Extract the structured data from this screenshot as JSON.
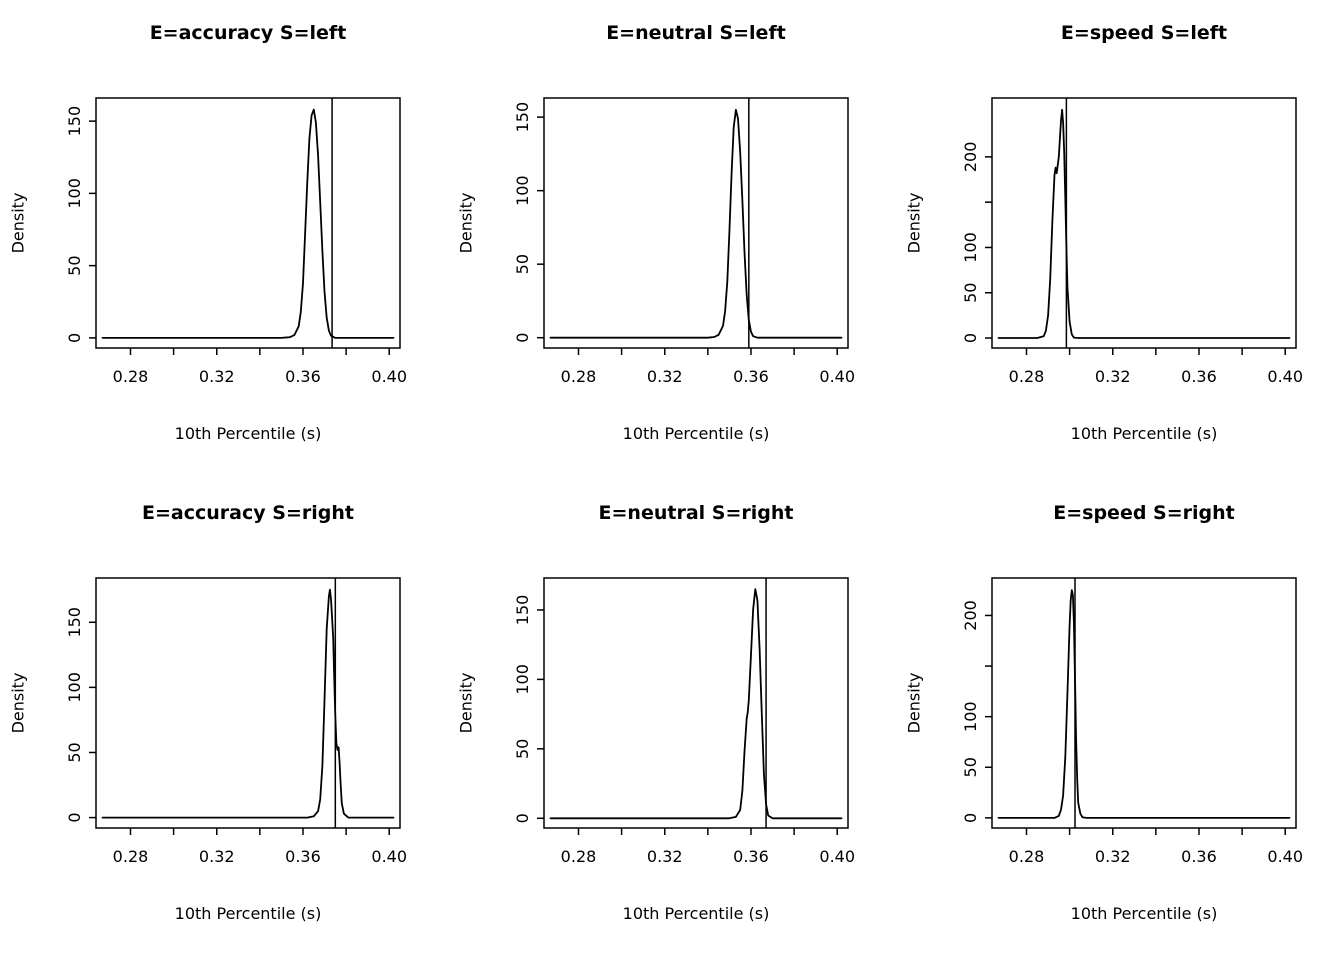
{
  "figure": {
    "background": "#ffffff",
    "foreground": "#000000",
    "layout": "2 rows x 3 columns of density plots",
    "xlabel": "10th Percentile (s)",
    "ylabel": "Density"
  },
  "x_axis": {
    "tick_values": [
      0.28,
      0.3,
      0.32,
      0.34,
      0.36,
      0.38,
      0.4
    ],
    "tick_labels": [
      "0.28",
      "",
      "0.32",
      "",
      "0.36",
      "",
      "0.40"
    ]
  },
  "chart_data": [
    {
      "type": "line",
      "title": "E=accuracy S=left",
      "xlabel": "10th Percentile (s)",
      "ylabel": "Density",
      "xlim": [
        0.264,
        0.405
      ],
      "ylim": [
        -7,
        166
      ],
      "legend": "none",
      "grid": false,
      "y_axis": {
        "tick_values": [
          0,
          50,
          100,
          150
        ],
        "tick_labels": [
          "0",
          "50",
          "100",
          "150"
        ]
      },
      "vline": 0.3735,
      "curve": [
        [
          0.267,
          0
        ],
        [
          0.35,
          0
        ],
        [
          0.354,
          0.5
        ],
        [
          0.356,
          2
        ],
        [
          0.358,
          8
        ],
        [
          0.359,
          18
        ],
        [
          0.36,
          38
        ],
        [
          0.361,
          72
        ],
        [
          0.362,
          108
        ],
        [
          0.363,
          138
        ],
        [
          0.364,
          154
        ],
        [
          0.365,
          158
        ],
        [
          0.366,
          149
        ],
        [
          0.367,
          126
        ],
        [
          0.368,
          94
        ],
        [
          0.369,
          60
        ],
        [
          0.37,
          32
        ],
        [
          0.371,
          14
        ],
        [
          0.372,
          5
        ],
        [
          0.373,
          1.5
        ],
        [
          0.375,
          0
        ],
        [
          0.402,
          0
        ]
      ]
    },
    {
      "type": "line",
      "title": "E=neutral S=left",
      "xlabel": "10th Percentile (s)",
      "ylabel": "Density",
      "xlim": [
        0.264,
        0.405
      ],
      "ylim": [
        -7,
        163
      ],
      "legend": "none",
      "grid": false,
      "y_axis": {
        "tick_values": [
          0,
          50,
          100,
          150
        ],
        "tick_labels": [
          "0",
          "50",
          "100",
          "150"
        ]
      },
      "vline": 0.359,
      "curve": [
        [
          0.267,
          0
        ],
        [
          0.34,
          0
        ],
        [
          0.343,
          0.5
        ],
        [
          0.345,
          2
        ],
        [
          0.347,
          8
        ],
        [
          0.348,
          18
        ],
        [
          0.349,
          38
        ],
        [
          0.35,
          72
        ],
        [
          0.351,
          112
        ],
        [
          0.352,
          143
        ],
        [
          0.353,
          155
        ],
        [
          0.354,
          149
        ],
        [
          0.355,
          126
        ],
        [
          0.356,
          93
        ],
        [
          0.357,
          58
        ],
        [
          0.358,
          29
        ],
        [
          0.359,
          12
        ],
        [
          0.36,
          4
        ],
        [
          0.361,
          1
        ],
        [
          0.363,
          0
        ],
        [
          0.402,
          0
        ]
      ]
    },
    {
      "type": "line",
      "title": "E=speed S=left",
      "xlabel": "10th Percentile (s)",
      "ylabel": "Density",
      "xlim": [
        0.264,
        0.405
      ],
      "ylim": [
        -11,
        265
      ],
      "legend": "none",
      "grid": false,
      "y_axis": {
        "tick_values": [
          0,
          50,
          100,
          150,
          200
        ],
        "tick_labels": [
          "0",
          "50",
          "100",
          "",
          "200"
        ]
      },
      "vline": 0.2985,
      "curve": [
        [
          0.267,
          0
        ],
        [
          0.285,
          0
        ],
        [
          0.288,
          2
        ],
        [
          0.289,
          8
        ],
        [
          0.29,
          25
        ],
        [
          0.291,
          65
        ],
        [
          0.292,
          130
        ],
        [
          0.293,
          180
        ],
        [
          0.2935,
          188
        ],
        [
          0.294,
          182
        ],
        [
          0.295,
          200
        ],
        [
          0.296,
          240
        ],
        [
          0.2965,
          252
        ],
        [
          0.297,
          238
        ],
        [
          0.2975,
          205
        ],
        [
          0.298,
          155
        ],
        [
          0.2985,
          100
        ],
        [
          0.299,
          55
        ],
        [
          0.3,
          18
        ],
        [
          0.301,
          4
        ],
        [
          0.302,
          0.5
        ],
        [
          0.304,
          0
        ],
        [
          0.402,
          0
        ]
      ]
    },
    {
      "type": "line",
      "title": "E=accuracy S=right",
      "xlabel": "10th Percentile (s)",
      "ylabel": "Density",
      "xlim": [
        0.264,
        0.405
      ],
      "ylim": [
        -8,
        184
      ],
      "legend": "none",
      "grid": false,
      "y_axis": {
        "tick_values": [
          0,
          50,
          100,
          150
        ],
        "tick_labels": [
          "0",
          "50",
          "100",
          "150"
        ]
      },
      "vline": 0.375,
      "curve": [
        [
          0.267,
          0
        ],
        [
          0.362,
          0
        ],
        [
          0.365,
          1
        ],
        [
          0.367,
          5
        ],
        [
          0.368,
          14
        ],
        [
          0.369,
          40
        ],
        [
          0.37,
          90
        ],
        [
          0.371,
          145
        ],
        [
          0.372,
          170
        ],
        [
          0.3725,
          175
        ],
        [
          0.373,
          168
        ],
        [
          0.374,
          138
        ],
        [
          0.3745,
          108
        ],
        [
          0.375,
          78
        ],
        [
          0.3755,
          57
        ],
        [
          0.376,
          52
        ],
        [
          0.3765,
          54
        ],
        [
          0.377,
          42
        ],
        [
          0.3775,
          25
        ],
        [
          0.378,
          11
        ],
        [
          0.379,
          3
        ],
        [
          0.381,
          0
        ],
        [
          0.402,
          0
        ]
      ]
    },
    {
      "type": "line",
      "title": "E=neutral S=right",
      "xlabel": "10th Percentile (s)",
      "ylabel": "Density",
      "xlim": [
        0.264,
        0.405
      ],
      "ylim": [
        -7,
        173
      ],
      "legend": "none",
      "grid": false,
      "y_axis": {
        "tick_values": [
          0,
          50,
          100,
          150
        ],
        "tick_labels": [
          "0",
          "50",
          "100",
          "150"
        ]
      },
      "vline": 0.367,
      "curve": [
        [
          0.267,
          0
        ],
        [
          0.35,
          0
        ],
        [
          0.353,
          1
        ],
        [
          0.355,
          6
        ],
        [
          0.356,
          20
        ],
        [
          0.357,
          48
        ],
        [
          0.358,
          72
        ],
        [
          0.3585,
          76
        ],
        [
          0.359,
          85
        ],
        [
          0.36,
          118
        ],
        [
          0.361,
          150
        ],
        [
          0.362,
          165
        ],
        [
          0.363,
          157
        ],
        [
          0.364,
          122
        ],
        [
          0.365,
          75
        ],
        [
          0.366,
          32
        ],
        [
          0.367,
          10
        ],
        [
          0.368,
          2
        ],
        [
          0.37,
          0
        ],
        [
          0.402,
          0
        ]
      ]
    },
    {
      "type": "line",
      "title": "E=speed S=right",
      "xlabel": "10th Percentile (s)",
      "ylabel": "Density",
      "xlim": [
        0.264,
        0.405
      ],
      "ylim": [
        -10,
        237
      ],
      "legend": "none",
      "grid": false,
      "y_axis": {
        "tick_values": [
          0,
          50,
          100,
          150,
          200
        ],
        "tick_labels": [
          "0",
          "50",
          "100",
          "",
          "200"
        ]
      },
      "vline": 0.3025,
      "curve": [
        [
          0.267,
          0
        ],
        [
          0.293,
          0
        ],
        [
          0.295,
          2
        ],
        [
          0.296,
          8
        ],
        [
          0.297,
          22
        ],
        [
          0.298,
          60
        ],
        [
          0.299,
          125
        ],
        [
          0.3,
          190
        ],
        [
          0.3005,
          215
        ],
        [
          0.301,
          225
        ],
        [
          0.3015,
          220
        ],
        [
          0.302,
          193
        ],
        [
          0.3025,
          138
        ],
        [
          0.303,
          78
        ],
        [
          0.3035,
          38
        ],
        [
          0.304,
          15
        ],
        [
          0.305,
          4
        ],
        [
          0.306,
          0.5
        ],
        [
          0.308,
          0
        ],
        [
          0.402,
          0
        ]
      ]
    }
  ]
}
